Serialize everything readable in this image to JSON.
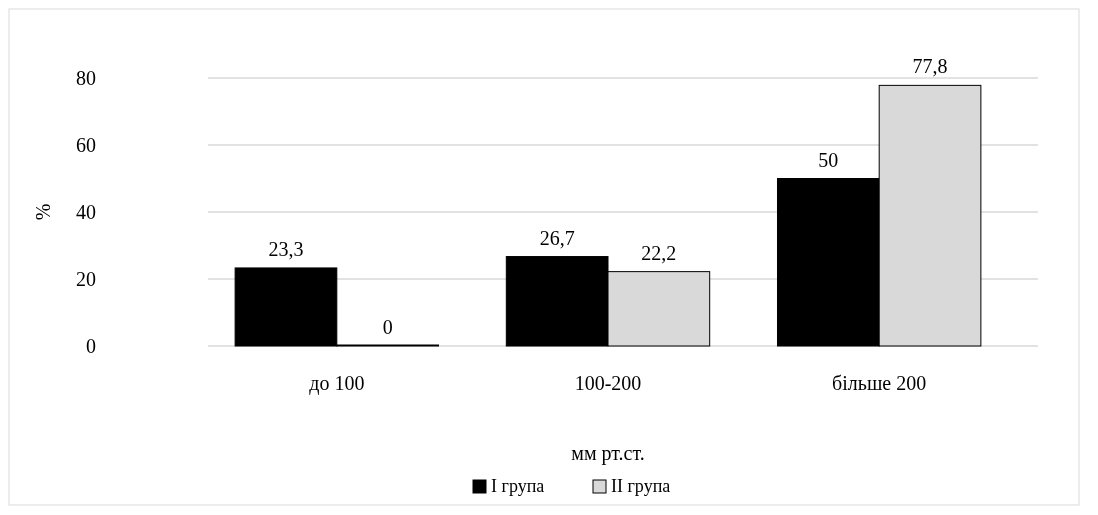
{
  "chart_data": {
    "type": "bar",
    "xlabel": "мм рт.ст.",
    "ylabel": "%",
    "categories": [
      "до 100",
      "100-200",
      "більше 200"
    ],
    "series": [
      {
        "name": "I група",
        "color": "#000000",
        "values": [
          23.3,
          26.7,
          50
        ],
        "value_labels": [
          "23,3",
          "26,7",
          "50"
        ]
      },
      {
        "name": "II група",
        "color": "#d9d9d9",
        "values": [
          0,
          22.2,
          77.8
        ],
        "value_labels": [
          "0",
          "22,2",
          "77,8"
        ]
      }
    ],
    "ylim": [
      0,
      80
    ],
    "yticks": [
      0,
      20,
      40,
      60,
      80
    ],
    "grid": "y",
    "legend": "bottom"
  }
}
